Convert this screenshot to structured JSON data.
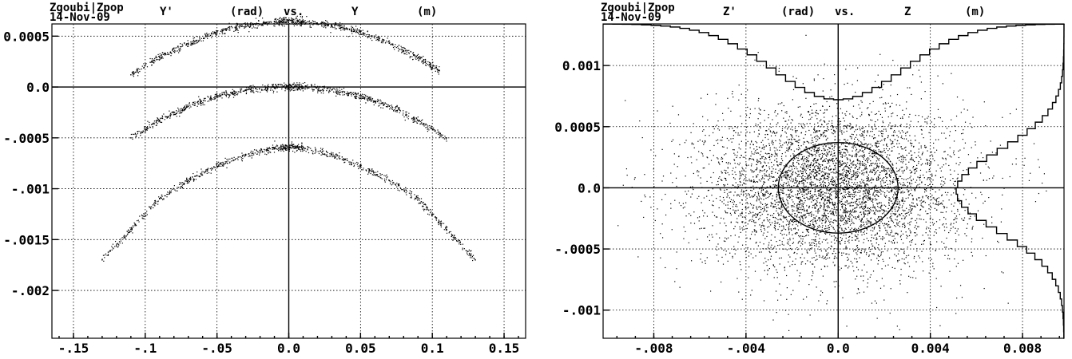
{
  "program": "Zgoubi|Zpop",
  "date": "14-Nov-09",
  "chart_data": [
    {
      "type": "scatter",
      "title": "Y'     (rad) vs.     Y      (m)",
      "title_parts": [
        "Y'",
        "(rad)",
        "vs.",
        "Y",
        "(m)"
      ],
      "xlim": [
        -0.165,
        0.165
      ],
      "ylim": [
        -0.00247,
        0.00062
      ],
      "grid": true,
      "x_ticks": [
        -0.15,
        -0.1,
        -0.05,
        0.0,
        0.05,
        0.1,
        0.15
      ],
      "x_tick_labels": [
        "-.15",
        "-.1",
        "-.05",
        "0.0",
        "0.05",
        "0.1",
        "0.15"
      ],
      "y_ticks": [
        0.0005,
        0.0,
        -0.0005,
        -0.001,
        -0.0015,
        -0.002
      ],
      "y_tick_labels": [
        "0.0005",
        "0.0",
        "-.0005",
        "-.001",
        "-.0015",
        "-.002"
      ],
      "series": [
        {
          "x": [
            -0.11,
            -0.09,
            -0.07,
            -0.05,
            -0.03,
            -0.01,
            0.0,
            0.01,
            0.03,
            0.05,
            0.07,
            0.09,
            0.105
          ],
          "y": [
            0.00012,
            0.00029,
            0.00043,
            0.00054,
            0.00061,
            0.00064,
            0.00065,
            0.00064,
            0.00061,
            0.00054,
            0.00043,
            0.00029,
            0.00016
          ]
        },
        {
          "x": [
            -0.11,
            -0.09,
            -0.07,
            -0.05,
            -0.03,
            -0.01,
            0.0,
            0.01,
            0.03,
            0.05,
            0.07,
            0.09,
            0.11
          ],
          "y": [
            -0.0005,
            -0.00033,
            -0.00019,
            -9e-05,
            -3e-05,
            0.0,
            0.0,
            0.0,
            -3e-05,
            -9e-05,
            -0.00019,
            -0.00033,
            -0.0005
          ]
        },
        {
          "x": [
            -0.13,
            -0.11,
            -0.09,
            -0.07,
            -0.05,
            -0.03,
            -0.01,
            0.0,
            0.01,
            0.03,
            0.05,
            0.07,
            0.09,
            0.11,
            0.13
          ],
          "y": [
            -0.0017,
            -0.0014,
            -0.0011,
            -0.00092,
            -0.00078,
            -0.00067,
            -0.0006,
            -0.00059,
            -0.0006,
            -0.00067,
            -0.00078,
            -0.00092,
            -0.0011,
            -0.0014,
            -0.0017
          ]
        }
      ]
    },
    {
      "type": "scatter",
      "title": "Z'     (rad) vs.     Z      (m)",
      "title_parts": [
        "Z'",
        "(rad)",
        "vs.",
        "Z",
        "(m)"
      ],
      "xlim": [
        -0.0102,
        0.0098
      ],
      "ylim": [
        -0.00123,
        0.00134
      ],
      "grid": true,
      "x_ticks": [
        -0.008,
        -0.004,
        0.0,
        0.004,
        0.008
      ],
      "x_tick_labels": [
        "-.008",
        "-.004",
        "0.0",
        "0.004",
        "0.008"
      ],
      "y_ticks": [
        0.001,
        0.0005,
        0.0,
        -0.0005,
        -0.001
      ],
      "y_tick_labels": [
        "0.001",
        "0.0005",
        "0.0",
        "-.0005",
        "-.001"
      ],
      "distribution": {
        "x_center": -0.0002,
        "x_sigma": 0.0028,
        "y_center": 0.0,
        "y_sigma": 0.00033,
        "count": 5200
      },
      "ellipse": {
        "x_center": 0.0,
        "y_center": 0.0,
        "x_semi_axis": 0.0026,
        "y_semi_axis": 0.00037
      },
      "x_histogram_note": "projection histogram of Z drawn from top edge",
      "y_histogram_note": "projection histogram of Z' drawn from right edge"
    }
  ]
}
